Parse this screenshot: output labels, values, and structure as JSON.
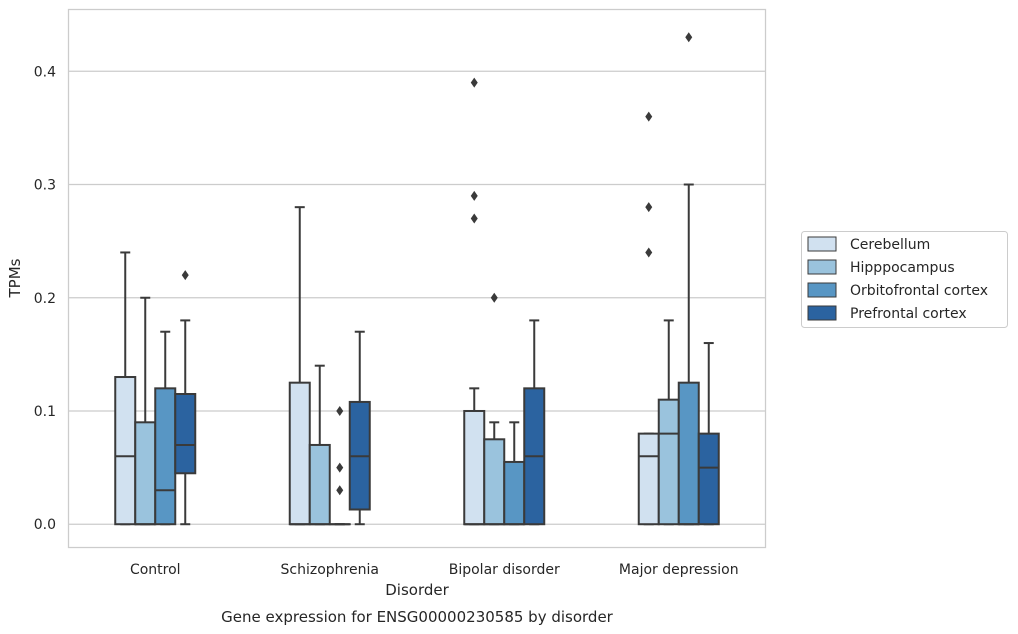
{
  "chart_data": {
    "type": "box",
    "title": "",
    "caption": "Gene expression for ENSG00000230585 by disorder",
    "xlabel": "Disorder",
    "ylabel": "TPMs",
    "ylim": [
      -0.021,
      0.455
    ],
    "yticks": [
      0.0,
      0.1,
      0.2,
      0.3,
      0.4
    ],
    "ytick_labels": [
      "0.0",
      "0.1",
      "0.2",
      "0.3",
      "0.4"
    ],
    "grid": "horizontal",
    "legend_position": "right",
    "categories": [
      "Control",
      "Schizophrenia",
      "Bipolar disorder",
      "Major depression"
    ],
    "series": [
      {
        "name": "Cerebellum",
        "color": "#d1e1f0",
        "boxes": [
          {
            "whislo": 0.0,
            "q1": 0.0,
            "med": 0.06,
            "q3": 0.13,
            "whishi": 0.24,
            "fliers": []
          },
          {
            "whislo": 0.0,
            "q1": 0.0,
            "med": 0.0,
            "q3": 0.125,
            "whishi": 0.28,
            "fliers": []
          },
          {
            "whislo": 0.0,
            "q1": 0.0,
            "med": 0.0,
            "q3": 0.1,
            "whishi": 0.12,
            "fliers": [
              0.27,
              0.29,
              0.39
            ]
          },
          {
            "whislo": 0.0,
            "q1": 0.0,
            "med": 0.06,
            "q3": 0.08,
            "whishi": 0.08,
            "fliers": [
              0.24,
              0.28,
              0.36
            ]
          }
        ]
      },
      {
        "name": "Hipppocampus",
        "color": "#9ac3dd",
        "boxes": [
          {
            "whislo": 0.0,
            "q1": 0.0,
            "med": 0.0,
            "q3": 0.09,
            "whishi": 0.2,
            "fliers": []
          },
          {
            "whislo": 0.0,
            "q1": 0.0,
            "med": 0.0,
            "q3": 0.07,
            "whishi": 0.14,
            "fliers": []
          },
          {
            "whislo": 0.0,
            "q1": 0.0,
            "med": 0.0,
            "q3": 0.075,
            "whishi": 0.09,
            "fliers": [
              0.2
            ]
          },
          {
            "whislo": 0.0,
            "q1": 0.0,
            "med": 0.08,
            "q3": 0.11,
            "whishi": 0.18,
            "fliers": []
          }
        ]
      },
      {
        "name": "Orbitofrontal cortex",
        "color": "#5896c4",
        "boxes": [
          {
            "whislo": 0.0,
            "q1": 0.0,
            "med": 0.03,
            "q3": 0.12,
            "whishi": 0.17,
            "fliers": []
          },
          {
            "whislo": 0.0,
            "q1": 0.0,
            "med": 0.0,
            "q3": 0.0,
            "whishi": 0.0,
            "fliers": [
              0.03,
              0.05,
              0.1
            ]
          },
          {
            "whislo": 0.0,
            "q1": 0.0,
            "med": 0.0,
            "q3": 0.055,
            "whishi": 0.09,
            "fliers": []
          },
          {
            "whislo": 0.0,
            "q1": 0.0,
            "med": 0.0,
            "q3": 0.125,
            "whishi": 0.3,
            "fliers": [
              0.43
            ]
          }
        ]
      },
      {
        "name": "Prefrontal cortex",
        "color": "#2b63a0",
        "boxes": [
          {
            "whislo": 0.0,
            "q1": 0.045,
            "med": 0.07,
            "q3": 0.115,
            "whishi": 0.18,
            "fliers": [
              0.22
            ]
          },
          {
            "whislo": 0.0,
            "q1": 0.013,
            "med": 0.06,
            "q3": 0.108,
            "whishi": 0.17,
            "fliers": []
          },
          {
            "whislo": 0.0,
            "q1": 0.0,
            "med": 0.06,
            "q3": 0.12,
            "whishi": 0.18,
            "fliers": []
          },
          {
            "whislo": 0.0,
            "q1": 0.0,
            "med": 0.05,
            "q3": 0.08,
            "whishi": 0.16,
            "fliers": []
          }
        ]
      }
    ]
  }
}
